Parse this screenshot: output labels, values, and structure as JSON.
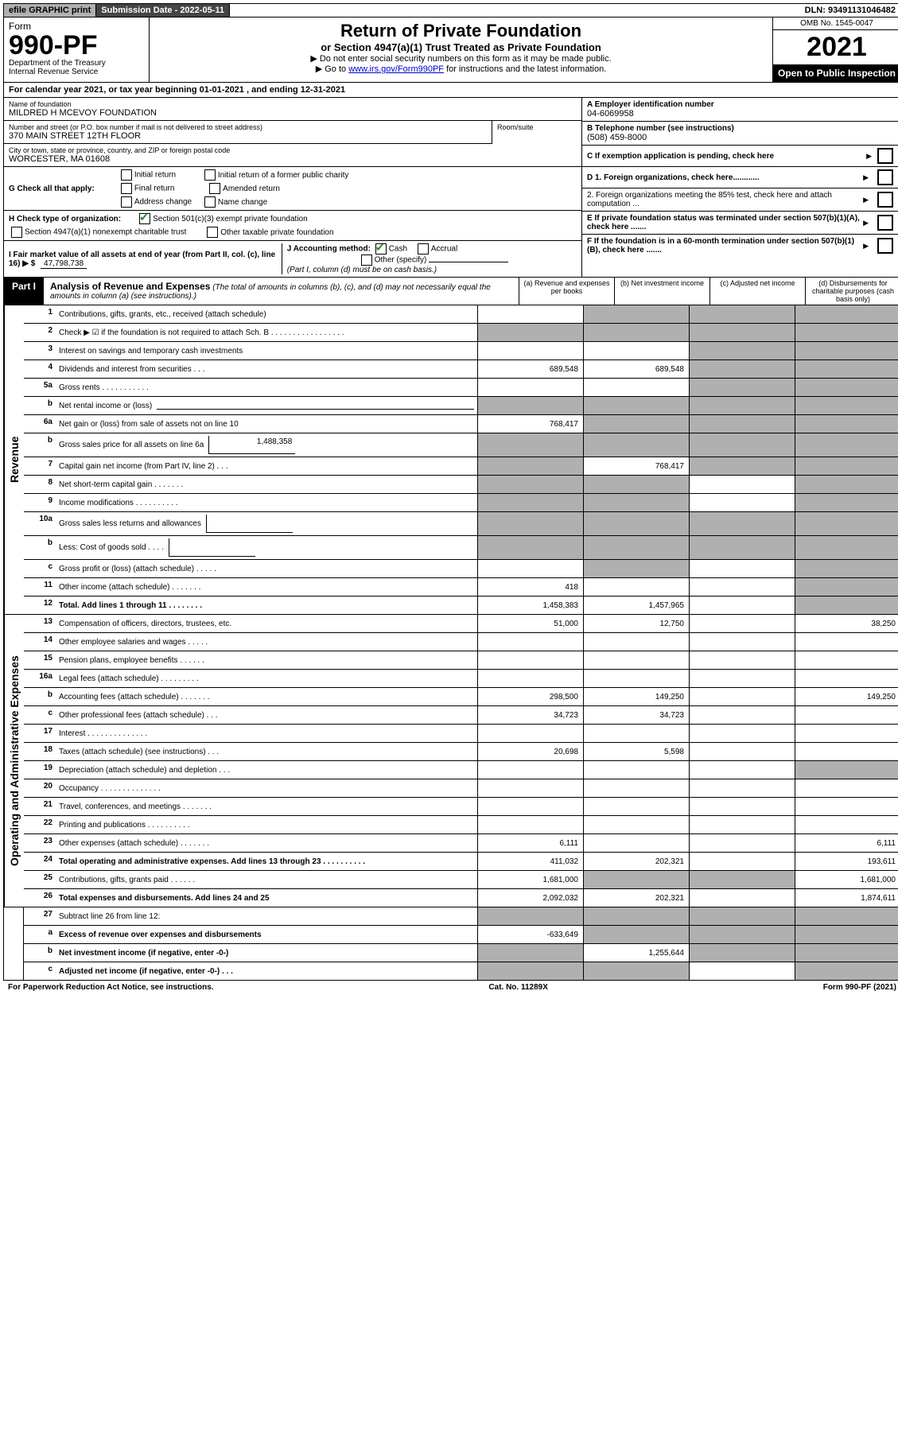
{
  "top": {
    "efile": "efile GRAPHIC print",
    "submission": "Submission Date - 2022-05-11",
    "dln": "DLN: 93491131046482"
  },
  "header": {
    "form": "Form",
    "formnum": "990-PF",
    "dept": "Department of the Treasury",
    "irs": "Internal Revenue Service",
    "title": "Return of Private Foundation",
    "subtitle": "or Section 4947(a)(1) Trust Treated as Private Foundation",
    "note1": "▶ Do not enter social security numbers on this form as it may be made public.",
    "note2_pre": "▶ Go to ",
    "note2_link": "www.irs.gov/Form990PF",
    "note2_post": " for instructions and the latest information.",
    "omb": "OMB No. 1545-0047",
    "year": "2021",
    "open": "Open to Public Inspection"
  },
  "cal": "For calendar year 2021, or tax year beginning 01-01-2021          , and ending 12-31-2021",
  "id": {
    "name_label": "Name of foundation",
    "name": "MILDRED H MCEVOY FOUNDATION",
    "addr_label": "Number and street (or P.O. box number if mail is not delivered to street address)",
    "addr": "370 MAIN STREET 12TH FLOOR",
    "room_label": "Room/suite",
    "city_label": "City or town, state or province, country, and ZIP or foreign postal code",
    "city": "WORCESTER, MA  01608",
    "ein_label": "A Employer identification number",
    "ein": "04-6069958",
    "phone_label": "B Telephone number (see instructions)",
    "phone": "(508) 459-8000",
    "c": "C If exemption application is pending, check here"
  },
  "checks": {
    "g_label": "G Check all that apply:",
    "g1": "Initial return",
    "g2": "Initial return of a former public charity",
    "g3": "Final return",
    "g4": "Amended return",
    "g5": "Address change",
    "g6": "Name change",
    "h_label": "H Check type of organization:",
    "h1": "Section 501(c)(3) exempt private foundation",
    "h2": "Section 4947(a)(1) nonexempt charitable trust",
    "h3": "Other taxable private foundation",
    "i_label": "I Fair market value of all assets at end of year (from Part II, col. (c), line 16) ▶ $",
    "i_val": "47,798,738",
    "j_label": "J Accounting method:",
    "j1": "Cash",
    "j2": "Accrual",
    "j3": "Other (specify)",
    "j_note": "(Part I, column (d) must be on cash basis.)",
    "d1": "D 1. Foreign organizations, check here............",
    "d2": "2. Foreign organizations meeting the 85% test, check here and attach computation ...",
    "e": "E If private foundation status was terminated under section 507(b)(1)(A), check here .......",
    "f": "F If the foundation is in a 60-month termination under section 507(b)(1)(B), check here .......",
    "arrow": "▶"
  },
  "part1": {
    "label": "Part I",
    "title": "Analysis of Revenue and Expenses",
    "sub": " (The total of amounts in columns (b), (c), and (d) may not necessarily equal the amounts in column (a) (see instructions).)",
    "col_a": "(a) Revenue and expenses per books",
    "col_b": "(b) Net investment income",
    "col_c": "(c) Adjusted net income",
    "col_d": "(d) Disbursements for charitable purposes (cash basis only)"
  },
  "sections": {
    "revenue": "Revenue",
    "opexp": "Operating and Administrative Expenses"
  },
  "rows": {
    "r1": {
      "n": "1",
      "d": "Contributions, gifts, grants, etc., received (attach schedule)"
    },
    "r2": {
      "n": "2",
      "d": "Check ▶ ☑ if the foundation is not required to attach Sch. B   .  .  .  .  .  .  .  .  .  .  .  .  .  .  .  .  ."
    },
    "r3": {
      "n": "3",
      "d": "Interest on savings and temporary cash investments"
    },
    "r4": {
      "n": "4",
      "d": "Dividends and interest from securities   .   .   .",
      "a": "689,548",
      "b": "689,548"
    },
    "r5a": {
      "n": "5a",
      "d": "Gross rents   .   .   .   .   .   .   .   .   .   .   ."
    },
    "r5b": {
      "n": "b",
      "d": "Net rental income or (loss)"
    },
    "r6a": {
      "n": "6a",
      "d": "Net gain or (loss) from sale of assets not on line 10",
      "a": "768,417"
    },
    "r6b": {
      "n": "b",
      "d": "Gross sales price for all assets on line 6a",
      "box": "1,488,358"
    },
    "r7": {
      "n": "7",
      "d": "Capital gain net income (from Part IV, line 2)   .   .   .",
      "b": "768,417"
    },
    "r8": {
      "n": "8",
      "d": "Net short-term capital gain   .   .   .   .   .   .   ."
    },
    "r9": {
      "n": "9",
      "d": "Income modifications .   .   .   .   .   .   .   .   .   ."
    },
    "r10a": {
      "n": "10a",
      "d": "Gross sales less returns and allowances"
    },
    "r10b": {
      "n": "b",
      "d": "Less: Cost of goods sold   .   .   .   ."
    },
    "r10c": {
      "n": "c",
      "d": "Gross profit or (loss) (attach schedule)   .   .   .   .   ."
    },
    "r11": {
      "n": "11",
      "d": "Other income (attach schedule)   .   .   .   .   .   .   .",
      "a": "418"
    },
    "r12": {
      "n": "12",
      "d": "Total. Add lines 1 through 11   .   .   .   .   .   .   .   .",
      "a": "1,458,383",
      "b": "1,457,965"
    },
    "r13": {
      "n": "13",
      "d": "Compensation of officers, directors, trustees, etc.",
      "a": "51,000",
      "b": "12,750",
      "dd": "38,250"
    },
    "r14": {
      "n": "14",
      "d": "Other employee salaries and wages   .   .   .   .   ."
    },
    "r15": {
      "n": "15",
      "d": "Pension plans, employee benefits  .   .   .   .   .   ."
    },
    "r16a": {
      "n": "16a",
      "d": "Legal fees (attach schedule) .   .   .   .   .   .   .   .   ."
    },
    "r16b": {
      "n": "b",
      "d": "Accounting fees (attach schedule) .   .   .   .   .   .   .",
      "a": "298,500",
      "b": "149,250",
      "dd": "149,250"
    },
    "r16c": {
      "n": "c",
      "d": "Other professional fees (attach schedule)   .   .   .",
      "a": "34,723",
      "b": "34,723"
    },
    "r17": {
      "n": "17",
      "d": "Interest .   .   .   .   .   .   .   .   .   .   .   .   .   ."
    },
    "r18": {
      "n": "18",
      "d": "Taxes (attach schedule) (see instructions)   .   .   .",
      "a": "20,698",
      "b": "5,598"
    },
    "r19": {
      "n": "19",
      "d": "Depreciation (attach schedule) and depletion   .   .   ."
    },
    "r20": {
      "n": "20",
      "d": "Occupancy .   .   .   .   .   .   .   .   .   .   .   .   .   ."
    },
    "r21": {
      "n": "21",
      "d": "Travel, conferences, and meetings .   .   .   .   .   .   ."
    },
    "r22": {
      "n": "22",
      "d": "Printing and publications .   .   .   .   .   .   .   .   .   ."
    },
    "r23": {
      "n": "23",
      "d": "Other expenses (attach schedule) .   .   .   .   .   .   .",
      "a": "6,111",
      "dd": "6,111"
    },
    "r24": {
      "n": "24",
      "d": "Total operating and administrative expenses. Add lines 13 through 23   .   .   .   .   .   .   .   .   .   .",
      "a": "411,032",
      "b": "202,321",
      "dd": "193,611"
    },
    "r25": {
      "n": "25",
      "d": "Contributions, gifts, grants paid   .   .   .   .   .   .",
      "a": "1,681,000",
      "dd": "1,681,000"
    },
    "r26": {
      "n": "26",
      "d": "Total expenses and disbursements. Add lines 24 and 25",
      "a": "2,092,032",
      "b": "202,321",
      "dd": "1,874,611"
    },
    "r27": {
      "n": "27",
      "d": "Subtract line 26 from line 12:"
    },
    "r27a": {
      "n": "a",
      "d": "Excess of revenue over expenses and disbursements",
      "a": "-633,649"
    },
    "r27b": {
      "n": "b",
      "d": "Net investment income (if negative, enter -0-)",
      "b": "1,255,644"
    },
    "r27c": {
      "n": "c",
      "d": "Adjusted net income (if negative, enter -0-)   .   .   ."
    }
  },
  "footer": {
    "left": "For Paperwork Reduction Act Notice, see instructions.",
    "mid": "Cat. No. 11289X",
    "right": "Form 990-PF (2021)"
  }
}
